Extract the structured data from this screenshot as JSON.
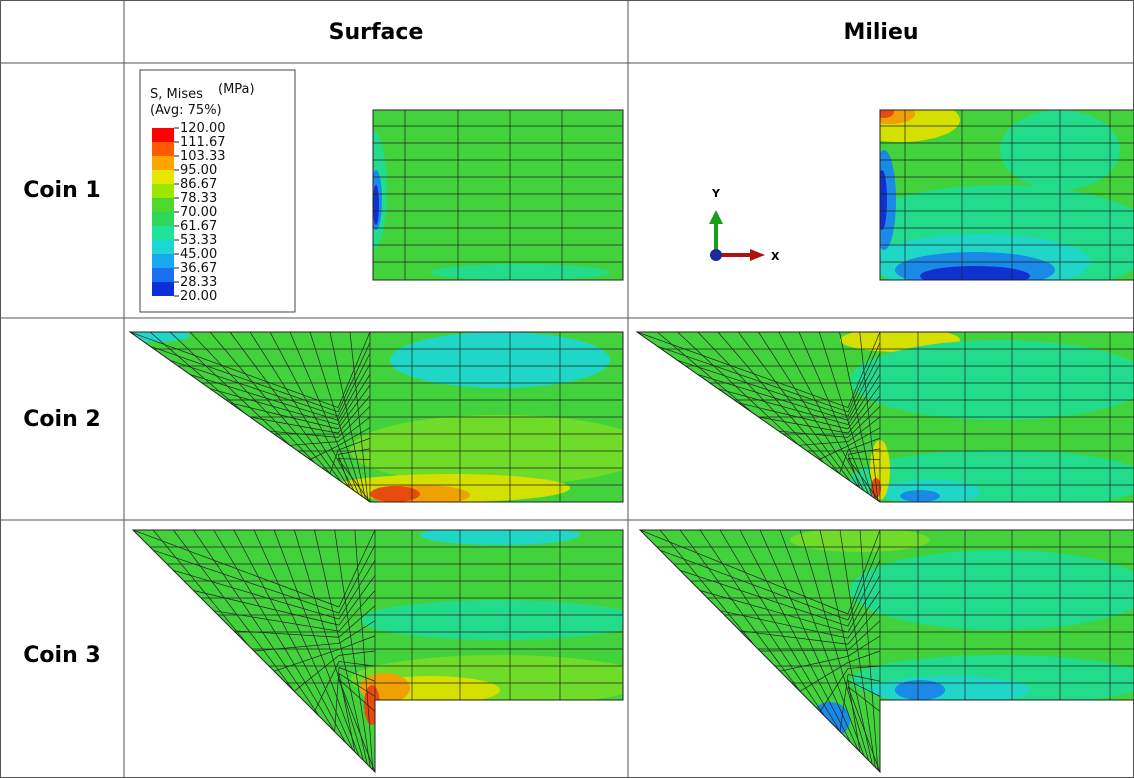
{
  "table": {
    "columns": [
      "Surface",
      "Milieu"
    ],
    "rows": [
      "Coin 1",
      "Coin 2",
      "Coin 3"
    ]
  },
  "legend": {
    "title": "S, Mises",
    "unit": "(MPa)",
    "average": "(Avg: 75%)",
    "levels": [
      "120.00",
      "111.67",
      "103.33",
      "95.00",
      "86.67",
      "78.33",
      "70.00",
      "61.67",
      "53.33",
      "45.00",
      "36.67",
      "28.33",
      "20.00"
    ],
    "colors": [
      "#ff0000",
      "#ff5a00",
      "#ffa500",
      "#e6e600",
      "#9ce600",
      "#4cd82c",
      "#2fd85a",
      "#1fe39c",
      "#1cd8d0",
      "#17a8f0",
      "#1a6ef0",
      "#0a2fd8"
    ]
  },
  "axes": {
    "y": "Y",
    "x": "X"
  }
}
